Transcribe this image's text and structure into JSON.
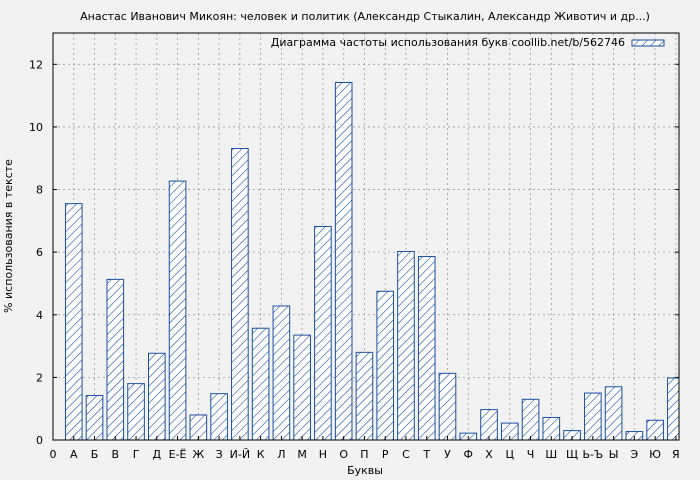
{
  "chart_data": {
    "type": "bar",
    "title": "Анастас Иванович Микоян: человек и политик (Александр Стыкалин, Александр Животич и др...)",
    "xlabel": "Буквы",
    "ylabel": "% использования в тексте",
    "legend": {
      "label": "Диаграмма частоты использования букв coollib.net/b/562746",
      "position": "top-right"
    },
    "ylim": [
      0,
      13
    ],
    "yticks": [
      0,
      2,
      4,
      6,
      8,
      10,
      12
    ],
    "grid": true,
    "x_origin_label": "0",
    "categories": [
      "А",
      "Б",
      "В",
      "Г",
      "Д",
      "Е-Ё",
      "Ж",
      "З",
      "И-Й",
      "К",
      "Л",
      "М",
      "Н",
      "О",
      "П",
      "Р",
      "С",
      "Т",
      "У",
      "Ф",
      "Х",
      "Ц",
      "Ч",
      "Ш",
      "Щ",
      "Ь-Ъ",
      "Ы",
      "Э",
      "Ю",
      "Я"
    ],
    "values": [
      7.55,
      1.42,
      5.13,
      1.8,
      2.77,
      8.27,
      0.8,
      1.48,
      9.31,
      3.57,
      4.28,
      3.35,
      6.82,
      11.42,
      2.8,
      4.75,
      6.02,
      5.86,
      2.13,
      0.22,
      0.97,
      0.54,
      1.3,
      0.72,
      0.3,
      1.5,
      1.7,
      0.27,
      0.63,
      1.98
    ],
    "colors": {
      "bar_stroke": "#1a4fa0",
      "plot_bg": "#f2f2f2",
      "grid": "#999999"
    }
  }
}
